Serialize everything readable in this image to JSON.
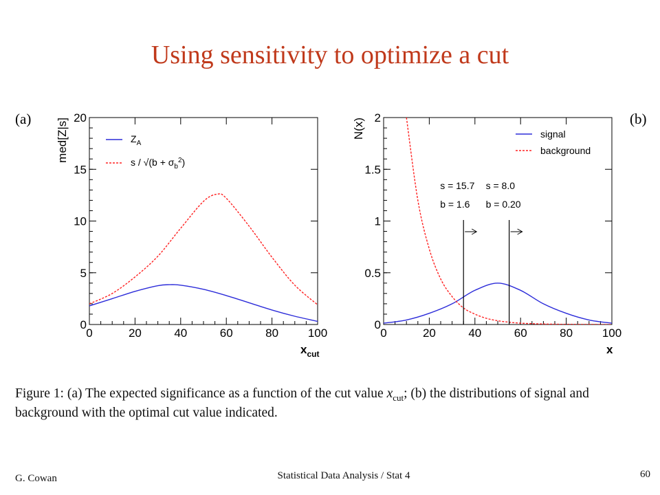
{
  "slide": {
    "title": "Using sensitivity to optimize a cut",
    "footer_author": "G. Cowan",
    "footer_course": "Statistical Data Analysis / Stat 4",
    "page_number": "60"
  },
  "caption": {
    "lead": "Figure 1:",
    "part1": "(a) The expected significance as a function of the cut value",
    "var": "x",
    "var_sub": "cut",
    "part2": "; (b) the distributions of signal and background with the optimal cut value indicated."
  },
  "chart_data": [
    {
      "type": "line",
      "panel_label": "(a)",
      "xlabel": "x",
      "xlabel_sub": "cut",
      "ylabel": "med[Z|s]",
      "xlim": [
        0,
        100
      ],
      "ylim": [
        0,
        20
      ],
      "xticks": [
        0,
        20,
        40,
        60,
        80,
        100
      ],
      "yticks": [
        0,
        5,
        10,
        15,
        20
      ],
      "legend_position": "top-left",
      "series": [
        {
          "name": "Z_A",
          "legend_main": "Z",
          "legend_sub": "A",
          "color": "#2b2bd9",
          "style": "solid",
          "x": [
            0,
            10,
            20,
            30,
            35,
            40,
            50,
            60,
            70,
            80,
            90,
            100
          ],
          "y": [
            1.8,
            2.5,
            3.2,
            3.75,
            3.85,
            3.8,
            3.4,
            2.8,
            2.1,
            1.4,
            0.8,
            0.3
          ]
        },
        {
          "name": "s / sqrt(b + σ_b²)",
          "legend_text": "s / √(b + σ",
          "legend_sub": "b",
          "legend_sup": "2",
          "color": "#ff2020",
          "style": "dashed",
          "x": [
            0,
            10,
            20,
            30,
            40,
            50,
            56,
            60,
            70,
            80,
            90,
            100
          ],
          "y": [
            2.0,
            3.0,
            4.6,
            6.6,
            9.3,
            11.9,
            12.6,
            12.2,
            9.5,
            6.5,
            3.8,
            1.9
          ]
        }
      ]
    },
    {
      "type": "line",
      "panel_label": "(b)",
      "xlabel": "x",
      "ylabel": "N(x)",
      "xlim": [
        0,
        100
      ],
      "ylim": [
        0,
        2
      ],
      "xticks": [
        0,
        20,
        40,
        60,
        80,
        100
      ],
      "yticks": [
        0,
        0.5,
        1,
        1.5,
        2
      ],
      "legend_position": "top-right",
      "series": [
        {
          "name": "signal",
          "color": "#2b2bd9",
          "style": "solid",
          "x": [
            0,
            10,
            20,
            30,
            40,
            50,
            60,
            70,
            80,
            90,
            100
          ],
          "y": [
            0.013,
            0.044,
            0.108,
            0.2,
            0.33,
            0.4,
            0.33,
            0.2,
            0.108,
            0.044,
            0.013
          ]
        },
        {
          "name": "background",
          "color": "#ff2020",
          "style": "dashed",
          "x": [
            10,
            15,
            20,
            25,
            30,
            35,
            40,
            45,
            50,
            55,
            60,
            70,
            80,
            100
          ],
          "y": [
            2.0,
            1.2,
            0.73,
            0.44,
            0.27,
            0.16,
            0.1,
            0.06,
            0.036,
            0.022,
            0.013,
            0.005,
            0.002,
            0.0
          ]
        }
      ],
      "cuts": [
        {
          "x": 35,
          "s_label": "s = 15.7",
          "b_label": "b = 1.6"
        },
        {
          "x": 55,
          "s_label": "s = 8.0",
          "b_label": "b = 0.20"
        }
      ]
    }
  ]
}
